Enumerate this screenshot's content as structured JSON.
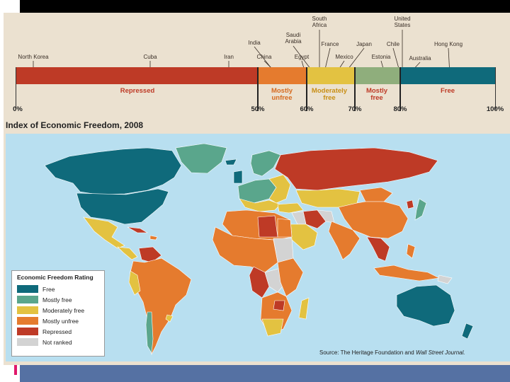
{
  "scale": {
    "country_labels": {
      "north_korea": "North Korea",
      "cuba": "Cuba",
      "iran": "Iran",
      "india": "India",
      "china": "China",
      "saudi_arabia": "Saudi\nArabia",
      "egypt": "Egypt",
      "south_africa": "South\nAfrica",
      "france": "France",
      "mexico": "Mexico",
      "japan": "Japan",
      "estonia": "Estonia",
      "chile": "Chile",
      "united_states": "United\nStates",
      "australia": "Australia",
      "hong_kong": "Hong Kong"
    },
    "categories": {
      "repressed": "Repressed",
      "mostly_unfree": "Mostly\nunfree",
      "moderately_free": "Moderately\nfree",
      "mostly_free": "Mostly\nfree",
      "free": "Free"
    },
    "percent_labels": {
      "p0": "0%",
      "p50": "50%",
      "p60": "60%",
      "p70": "70%",
      "p80": "80%",
      "p100": "100%"
    }
  },
  "map": {
    "title": "Index of Economic Freedom, 2008",
    "source_prefix": "Source: The Heritage Foundation and ",
    "source_italic": "Wall Street Journal."
  },
  "legend": {
    "title": "Economic Freedom Rating",
    "items": [
      "Free",
      "Mostly free",
      "Moderately free",
      "Mostly unfree",
      "Repressed",
      "Not ranked"
    ]
  },
  "colors": {
    "free": "#0f6a7b",
    "mostly_free": "#5aa68c",
    "moderately_free": "#e3c241",
    "mostly_unfree": "#e57b2e",
    "repressed": "#be3a26",
    "not_ranked": "#d3d3d3",
    "ocean": "#b8dff0"
  }
}
